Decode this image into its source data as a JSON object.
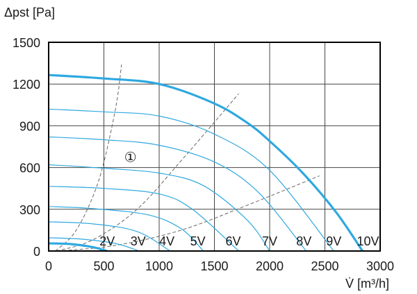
{
  "chart_data": {
    "type": "line",
    "ylabel": "Δpst [Pa]",
    "xlabel": "V̇ [m³/h]",
    "xlim": [
      0,
      3000
    ],
    "ylim": [
      0,
      1500
    ],
    "xticks": [
      0,
      500,
      1000,
      1500,
      2000,
      2500,
      3000
    ],
    "yticks": [
      0,
      300,
      600,
      900,
      1200,
      1500
    ],
    "xtick_labels": [
      "0",
      "500",
      "1000",
      "1500",
      "2000",
      "2500",
      "3000"
    ],
    "ytick_labels": [
      "0",
      "300",
      "600",
      "900",
      "1200",
      "1500"
    ],
    "grid": true,
    "colors": {
      "curve": "#2ea8e0",
      "system_line": "#666666",
      "grid": "#444444",
      "frame": "#000000"
    },
    "voltage_labels": [
      {
        "text": "2V",
        "x": 530,
        "y": 10
      },
      {
        "text": "3V",
        "x": 810,
        "y": 10
      },
      {
        "text": "4V",
        "x": 1070,
        "y": 10
      },
      {
        "text": "5V",
        "x": 1350,
        "y": 10
      },
      {
        "text": "6V",
        "x": 1670,
        "y": 10
      },
      {
        "text": "7V",
        "x": 2000,
        "y": 10
      },
      {
        "text": "8V",
        "x": 2310,
        "y": 10
      },
      {
        "text": "9V",
        "x": 2580,
        "y": 10
      },
      {
        "text": "10V",
        "x": 2890,
        "y": 10
      }
    ],
    "annotation": {
      "text": "①",
      "x": 740,
      "y": 640
    },
    "series": [
      {
        "name": "2V",
        "bold": true,
        "x": [
          0,
          200,
          400,
          530
        ],
        "y": [
          55,
          50,
          28,
          0
        ]
      },
      {
        "name": "3V",
        "x": [
          0,
          300,
          600,
          820
        ],
        "y": [
          95,
          85,
          55,
          0
        ]
      },
      {
        "name": "4V",
        "x": [
          0,
          400,
          800,
          1100
        ],
        "y": [
          210,
          195,
          140,
          0
        ]
      },
      {
        "name": "5V",
        "x": [
          0,
          400,
          900,
          1200,
          1400
        ],
        "y": [
          320,
          305,
          260,
          160,
          0
        ]
      },
      {
        "name": "6V",
        "x": [
          0,
          500,
          1000,
          1300,
          1720
        ],
        "y": [
          465,
          450,
          410,
          300,
          0
        ]
      },
      {
        "name": "7V",
        "x": [
          0,
          500,
          1000,
          1400,
          1800,
          2000
        ],
        "y": [
          620,
          595,
          560,
          470,
          220,
          0
        ]
      },
      {
        "name": "8V",
        "x": [
          0,
          500,
          1000,
          1500,
          1900,
          2330
        ],
        "y": [
          820,
          800,
          760,
          640,
          420,
          0
        ]
      },
      {
        "name": "9V",
        "x": [
          0,
          500,
          1000,
          1500,
          2000,
          2580
        ],
        "y": [
          1020,
          1000,
          970,
          840,
          580,
          0
        ]
      },
      {
        "name": "10V",
        "bold": true,
        "x": [
          0,
          500,
          1000,
          1500,
          1800,
          2000,
          2300,
          2600,
          2840
        ],
        "y": [
          1265,
          1240,
          1200,
          1060,
          920,
          790,
          560,
          280,
          0
        ]
      }
    ],
    "system_lines": [
      {
        "x": [
          60,
          250,
          450,
          600,
          660
        ],
        "y": [
          0,
          150,
          500,
          1000,
          1340
        ]
      },
      {
        "x": [
          70,
          400,
          800,
          1200,
          1720
        ],
        "y": [
          0,
          80,
          300,
          650,
          1130
        ]
      },
      {
        "x": [
          80,
          600,
          1200,
          1800,
          2450
        ],
        "y": [
          0,
          40,
          150,
          330,
          540
        ]
      }
    ]
  }
}
